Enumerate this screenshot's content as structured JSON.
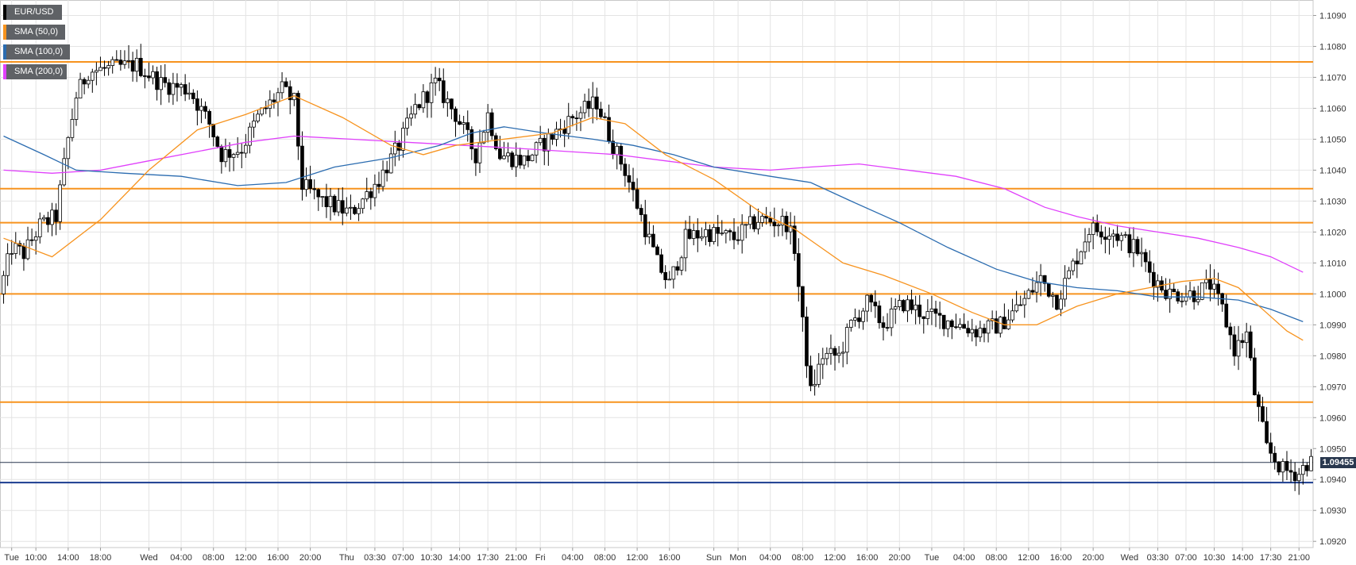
{
  "chart_data": {
    "type": "candlestick",
    "symbol": "EUR/USD",
    "ylim": [
      1.0918,
      1.1095
    ],
    "y_ticks": [
      "1.0920",
      "1.0930",
      "1.0940",
      "1.0950",
      "1.0960",
      "1.0970",
      "1.0980",
      "1.0990",
      "1.1000",
      "1.1010",
      "1.1020",
      "1.1030",
      "1.1040",
      "1.1050",
      "1.1060",
      "1.1070",
      "1.1080",
      "1.1090"
    ],
    "x_ticks": [
      {
        "label": "Tue",
        "i": 2
      },
      {
        "label": "10:00",
        "i": 8
      },
      {
        "label": "14:00",
        "i": 16
      },
      {
        "label": "18:00",
        "i": 24
      },
      {
        "label": "Wed",
        "i": 36
      },
      {
        "label": "04:00",
        "i": 44
      },
      {
        "label": "08:00",
        "i": 52
      },
      {
        "label": "12:00",
        "i": 60
      },
      {
        "label": "16:00",
        "i": 68
      },
      {
        "label": "20:00",
        "i": 76
      },
      {
        "label": "Thu",
        "i": 85
      },
      {
        "label": "03:30",
        "i": 92
      },
      {
        "label": "07:00",
        "i": 99
      },
      {
        "label": "10:30",
        "i": 106
      },
      {
        "label": "14:00",
        "i": 113
      },
      {
        "label": "17:30",
        "i": 120
      },
      {
        "label": "21:00",
        "i": 127
      },
      {
        "label": "Fri",
        "i": 133
      },
      {
        "label": "04:00",
        "i": 141
      },
      {
        "label": "08:00",
        "i": 149
      },
      {
        "label": "12:00",
        "i": 157
      },
      {
        "label": "16:00",
        "i": 165
      },
      {
        "label": "Sun",
        "i": 176
      },
      {
        "label": "Mon",
        "i": 182
      },
      {
        "label": "04:00",
        "i": 190
      },
      {
        "label": "08:00",
        "i": 198
      },
      {
        "label": "12:00",
        "i": 206
      },
      {
        "label": "16:00",
        "i": 214
      },
      {
        "label": "20:00",
        "i": 222
      },
      {
        "label": "Tue",
        "i": 230
      },
      {
        "label": "04:00",
        "i": 238
      },
      {
        "label": "08:00",
        "i": 246
      },
      {
        "label": "12:00",
        "i": 254
      },
      {
        "label": "16:00",
        "i": 262
      },
      {
        "label": "20:00",
        "i": 270
      },
      {
        "label": "Wed",
        "i": 279
      },
      {
        "label": "03:30",
        "i": 286
      },
      {
        "label": "07:00",
        "i": 293
      },
      {
        "label": "10:30",
        "i": 300
      },
      {
        "label": "14:00",
        "i": 307
      },
      {
        "label": "17:30",
        "i": 314
      },
      {
        "label": "21:00",
        "i": 321
      }
    ],
    "legend": [
      {
        "label": "EUR/USD",
        "color": "#000000"
      },
      {
        "label": "SMA (50,0)",
        "color": "#f7931e"
      },
      {
        "label": "SMA (100,0)",
        "color": "#2b6cb0"
      },
      {
        "label": "SMA (200,0)",
        "color": "#e040fb"
      }
    ],
    "current_price": {
      "value": 1.09455,
      "label": "1.09455"
    },
    "horizontal_levels": [
      {
        "value": 1.1075,
        "color": "#f7931e"
      },
      {
        "value": 1.1034,
        "color": "#f7931e"
      },
      {
        "value": 1.1023,
        "color": "#f7931e"
      },
      {
        "value": 1.1,
        "color": "#f7931e"
      },
      {
        "value": 1.0965,
        "color": "#f7931e"
      },
      {
        "value": 1.0939,
        "color": "#1a3b8f"
      }
    ],
    "candle_count": 325,
    "anchors": [
      [
        0,
        1.1
      ],
      [
        3,
        1.1015
      ],
      [
        6,
        1.1013
      ],
      [
        10,
        1.1022
      ],
      [
        14,
        1.1025
      ],
      [
        17,
        1.105
      ],
      [
        19,
        1.1064
      ],
      [
        22,
        1.1072
      ],
      [
        28,
        1.1073
      ],
      [
        34,
        1.1074
      ],
      [
        40,
        1.1068
      ],
      [
        47,
        1.1066
      ],
      [
        52,
        1.1055
      ],
      [
        55,
        1.1045
      ],
      [
        60,
        1.1047
      ],
      [
        64,
        1.1057
      ],
      [
        70,
        1.1066
      ],
      [
        73,
        1.1062
      ],
      [
        75,
        1.1035
      ],
      [
        80,
        1.103
      ],
      [
        87,
        1.1026
      ],
      [
        94,
        1.1037
      ],
      [
        99,
        1.1048
      ],
      [
        103,
        1.106
      ],
      [
        108,
        1.1068
      ],
      [
        113,
        1.1058
      ],
      [
        118,
        1.1045
      ],
      [
        121,
        1.1058
      ],
      [
        124,
        1.1045
      ],
      [
        130,
        1.1043
      ],
      [
        136,
        1.105
      ],
      [
        142,
        1.1057
      ],
      [
        148,
        1.1062
      ],
      [
        152,
        1.1048
      ],
      [
        155,
        1.104
      ],
      [
        159,
        1.1025
      ],
      [
        163,
        1.101
      ],
      [
        166,
        1.1003
      ],
      [
        170,
        1.1018
      ],
      [
        175,
        1.102
      ],
      [
        182,
        1.1018
      ],
      [
        188,
        1.1024
      ],
      [
        195,
        1.1023
      ],
      [
        197,
        1.1015
      ],
      [
        199,
        1.099
      ],
      [
        201,
        1.0968
      ],
      [
        204,
        1.098
      ],
      [
        208,
        1.098
      ],
      [
        211,
        1.099
      ],
      [
        215,
        1.0997
      ],
      [
        219,
        1.099
      ],
      [
        224,
        1.0997
      ],
      [
        230,
        1.0993
      ],
      [
        236,
        1.0991
      ],
      [
        242,
        1.0988
      ],
      [
        248,
        1.099
      ],
      [
        254,
        1.0998
      ],
      [
        258,
        1.1005
      ],
      [
        262,
        1.0998
      ],
      [
        267,
        1.1012
      ],
      [
        270,
        1.1021
      ],
      [
        276,
        1.102
      ],
      [
        282,
        1.1014
      ],
      [
        286,
        1.1005
      ],
      [
        290,
        1.1
      ],
      [
        296,
        1.1
      ],
      [
        300,
        1.1003
      ],
      [
        303,
        1.0995
      ],
      [
        306,
        1.0982
      ],
      [
        309,
        1.0987
      ],
      [
        311,
        1.0968
      ],
      [
        314,
        1.095
      ],
      [
        318,
        1.0943
      ],
      [
        322,
        1.0942
      ],
      [
        324,
        1.09455
      ]
    ],
    "sma50": [
      [
        0,
        1.1018
      ],
      [
        12,
        1.1012
      ],
      [
        24,
        1.1024
      ],
      [
        36,
        1.104
      ],
      [
        48,
        1.1053
      ],
      [
        60,
        1.1058
      ],
      [
        72,
        1.1064
      ],
      [
        84,
        1.1057
      ],
      [
        96,
        1.1048
      ],
      [
        104,
        1.1045
      ],
      [
        112,
        1.1048
      ],
      [
        124,
        1.105
      ],
      [
        136,
        1.1052
      ],
      [
        146,
        1.1057
      ],
      [
        154,
        1.1055
      ],
      [
        164,
        1.1045
      ],
      [
        176,
        1.1037
      ],
      [
        188,
        1.1026
      ],
      [
        196,
        1.1021
      ],
      [
        208,
        1.101
      ],
      [
        218,
        1.1006
      ],
      [
        230,
        1.1
      ],
      [
        240,
        1.0994
      ],
      [
        248,
        1.099
      ],
      [
        256,
        1.099
      ],
      [
        266,
        1.0996
      ],
      [
        276,
        1.1
      ],
      [
        284,
        1.1002
      ],
      [
        292,
        1.1004
      ],
      [
        300,
        1.1005
      ],
      [
        306,
        1.1002
      ],
      [
        312,
        1.0995
      ],
      [
        318,
        1.0988
      ],
      [
        322,
        1.0985
      ]
    ],
    "sma100": [
      [
        0,
        1.1051
      ],
      [
        10,
        1.1045
      ],
      [
        18,
        1.104
      ],
      [
        30,
        1.1039
      ],
      [
        44,
        1.1038
      ],
      [
        58,
        1.1035
      ],
      [
        70,
        1.1036
      ],
      [
        82,
        1.1041
      ],
      [
        96,
        1.1044
      ],
      [
        108,
        1.1048
      ],
      [
        116,
        1.1052
      ],
      [
        124,
        1.1054
      ],
      [
        134,
        1.1052
      ],
      [
        146,
        1.105
      ],
      [
        156,
        1.1048
      ],
      [
        166,
        1.1045
      ],
      [
        176,
        1.1041
      ],
      [
        190,
        1.1038
      ],
      [
        200,
        1.1036
      ],
      [
        210,
        1.103
      ],
      [
        222,
        1.1023
      ],
      [
        234,
        1.1015
      ],
      [
        246,
        1.1008
      ],
      [
        256,
        1.1004
      ],
      [
        266,
        1.1002
      ],
      [
        276,
        1.1001
      ],
      [
        286,
        1.0999
      ],
      [
        296,
        1.0999
      ],
      [
        306,
        1.0998
      ],
      [
        314,
        1.0995
      ],
      [
        322,
        1.0991
      ]
    ],
    "sma200": [
      [
        0,
        1.104
      ],
      [
        12,
        1.1039
      ],
      [
        24,
        1.104
      ],
      [
        36,
        1.1043
      ],
      [
        48,
        1.1046
      ],
      [
        60,
        1.1049
      ],
      [
        72,
        1.1051
      ],
      [
        86,
        1.105
      ],
      [
        100,
        1.1049
      ],
      [
        114,
        1.1048
      ],
      [
        128,
        1.1047
      ],
      [
        140,
        1.1046
      ],
      [
        152,
        1.1045
      ],
      [
        164,
        1.1043
      ],
      [
        176,
        1.1041
      ],
      [
        190,
        1.104
      ],
      [
        200,
        1.1041
      ],
      [
        212,
        1.1042
      ],
      [
        224,
        1.104
      ],
      [
        236,
        1.1038
      ],
      [
        248,
        1.1034
      ],
      [
        258,
        1.1028
      ],
      [
        266,
        1.1025
      ],
      [
        276,
        1.1022
      ],
      [
        286,
        1.102
      ],
      [
        296,
        1.1018
      ],
      [
        306,
        1.1015
      ],
      [
        314,
        1.1012
      ],
      [
        322,
        1.1007
      ]
    ]
  }
}
